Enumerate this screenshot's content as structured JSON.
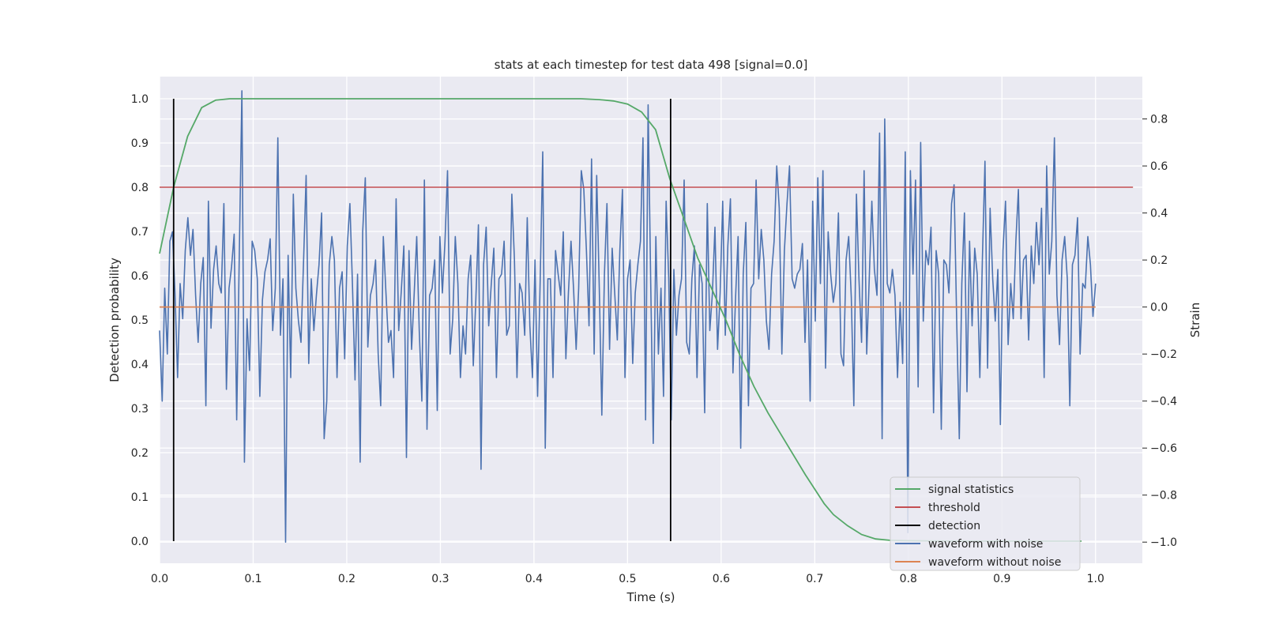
{
  "chart_data": {
    "type": "line",
    "title": "stats at each timestep for test data 498 [signal=0.0]",
    "xlabel": "Time (s)",
    "ylabel": "Detection probability",
    "y2label": "Strain",
    "xlim": [
      0.0,
      1.05
    ],
    "ylim": [
      -0.05,
      1.05
    ],
    "y2lim": [
      -1.09,
      0.98
    ],
    "xticks": [
      "0.0",
      "0.1",
      "0.2",
      "0.3",
      "0.4",
      "0.5",
      "0.6",
      "0.7",
      "0.8",
      "0.9",
      "1.0"
    ],
    "yticks": [
      "0.0",
      "0.1",
      "0.2",
      "0.3",
      "0.4",
      "0.5",
      "0.6",
      "0.7",
      "0.8",
      "0.9",
      "1.0"
    ],
    "y2ticks": [
      "−1.0",
      "−0.8",
      "−0.6",
      "−0.4",
      "−0.2",
      "0.0",
      "0.2",
      "0.4",
      "0.6",
      "0.8"
    ],
    "grid": true,
    "legend_position": "bottom-right",
    "colors": {
      "signal": "#55a868",
      "threshold": "#c44e52",
      "detection": "#000000",
      "noisy": "#4c72b0",
      "clean": "#dd8452",
      "axes_bg": "#eaeaf2",
      "grid": "#ffffff"
    },
    "series": [
      {
        "name": "signal statistics",
        "axis": "left",
        "x": [
          0.0,
          0.015,
          0.03,
          0.045,
          0.06,
          0.075,
          0.09,
          0.12,
          0.2,
          0.3,
          0.4,
          0.45,
          0.47,
          0.485,
          0.5,
          0.515,
          0.53,
          0.545,
          0.56,
          0.575,
          0.59,
          0.605,
          0.62,
          0.635,
          0.65,
          0.67,
          0.69,
          0.71,
          0.72,
          0.735,
          0.75,
          0.765,
          0.78,
          0.8,
          0.85,
          0.9,
          0.95,
          0.985
        ],
        "y": [
          0.65,
          0.8,
          0.915,
          0.98,
          0.997,
          1.0,
          1.0,
          1.0,
          1.0,
          1.0,
          1.0,
          1.0,
          0.998,
          0.995,
          0.988,
          0.97,
          0.93,
          0.82,
          0.73,
          0.64,
          0.57,
          0.5,
          0.42,
          0.35,
          0.29,
          0.22,
          0.15,
          0.085,
          0.06,
          0.035,
          0.015,
          0.005,
          0.002,
          0.001,
          0.0,
          0.0,
          0.0,
          0.0
        ]
      },
      {
        "name": "threshold",
        "axis": "left",
        "x": [
          0.0,
          1.04
        ],
        "y": [
          0.8,
          0.8
        ]
      },
      {
        "name": "detection",
        "axis": "left",
        "type": "vlines",
        "x": [
          0.015,
          0.546
        ],
        "ymin": 0.0,
        "ymax": 1.0
      },
      {
        "name": "waveform with noise",
        "axis": "right",
        "x_start": 0.0,
        "x_end": 1.0,
        "y": [
          -0.1,
          -0.4,
          0.08,
          -0.2,
          0.28,
          0.32,
          0.06,
          -0.3,
          0.1,
          -0.05,
          0.24,
          0.38,
          0.22,
          0.33,
          0.05,
          -0.15,
          0.1,
          0.21,
          -0.42,
          0.45,
          -0.09,
          0.16,
          0.26,
          0.1,
          0.06,
          0.44,
          -0.35,
          0.08,
          0.17,
          0.31,
          -0.48,
          0.22,
          0.92,
          -0.66,
          -0.05,
          -0.27,
          0.28,
          0.24,
          0.12,
          -0.38,
          0.03,
          0.15,
          0.2,
          0.29,
          -0.1,
          0.08,
          0.72,
          -0.12,
          0.12,
          -1.0,
          0.22,
          -0.3,
          0.48,
          0.08,
          -0.06,
          -0.15,
          0.2,
          0.56,
          -0.24,
          0.12,
          -0.1,
          0.05,
          0.18,
          0.4,
          -0.56,
          -0.4,
          0.18,
          0.3,
          0.2,
          -0.3,
          0.08,
          0.15,
          -0.22,
          0.26,
          0.44,
          0.1,
          -0.31,
          0.14,
          -0.66,
          0.32,
          0.55,
          -0.17,
          0.05,
          0.1,
          0.2,
          -0.2,
          -0.42,
          0.3,
          0.07,
          -0.15,
          -0.1,
          -0.3,
          0.46,
          -0.1,
          0.07,
          0.26,
          -0.64,
          0.24,
          -0.18,
          0.05,
          0.3,
          -0.1,
          -0.4,
          0.54,
          -0.52,
          0.05,
          0.08,
          0.2,
          -0.44,
          0.3,
          0.06,
          0.28,
          0.58,
          -0.2,
          -0.05,
          0.3,
          0.1,
          -0.3,
          -0.08,
          -0.2,
          0.12,
          0.22,
          -0.25,
          0.03,
          0.35,
          -0.69,
          0.18,
          0.34,
          -0.08,
          0.1,
          0.25,
          -0.3,
          0.12,
          0.14,
          0.28,
          -0.12,
          -0.08,
          0.48,
          0.2,
          -0.3,
          0.1,
          0.06,
          -0.12,
          0.38,
          -0.08,
          -0.3,
          0.2,
          -0.38,
          0.1,
          0.66,
          -0.6,
          0.12,
          0.12,
          -0.3,
          0.24,
          0.14,
          0.05,
          0.32,
          -0.22,
          0.06,
          0.28,
          0.08,
          -0.18,
          0.08,
          0.58,
          0.5,
          0.24,
          -0.08,
          0.63,
          -0.2,
          0.56,
          0.08,
          -0.46,
          0.14,
          0.44,
          -0.18,
          0.25,
          0.06,
          -0.14,
          0.24,
          0.5,
          -0.3,
          0.12,
          0.2,
          -0.24,
          0.06,
          0.18,
          0.28,
          0.72,
          -0.48,
          0.86,
          0.1,
          -0.58,
          0.3,
          -0.2,
          0.08,
          -0.38,
          0.45,
          0.12,
          -0.48,
          0.16,
          -0.12,
          0.05,
          0.12,
          0.54,
          -0.15,
          -0.2,
          0.12,
          0.26,
          -0.3,
          0.18,
          0.1,
          -0.45,
          0.44,
          -0.1,
          0.06,
          0.34,
          -0.18,
          0.06,
          0.45,
          -0.12,
          0.26,
          0.46,
          -0.28,
          0.04,
          0.3,
          -0.6,
          0.14,
          0.36,
          -0.42,
          0.08,
          0.1,
          0.54,
          0.12,
          0.33,
          0.2,
          -0.06,
          -0.18,
          0.14,
          0.28,
          0.6,
          0.42,
          -0.2,
          0.24,
          0.44,
          0.6,
          0.12,
          0.08,
          0.14,
          0.16,
          0.27,
          -0.15,
          0.2,
          -0.4,
          0.45,
          -0.06,
          0.55,
          0.1,
          0.58,
          -0.26,
          0.32,
          0.14,
          0.02,
          0.1,
          0.4,
          -0.2,
          -0.25,
          0.2,
          0.3,
          0.04,
          -0.42,
          0.48,
          0.12,
          -0.15,
          0.58,
          -0.2,
          0.12,
          0.45,
          0.16,
          0.05,
          0.74,
          -0.56,
          0.8,
          0.1,
          0.06,
          0.16,
          0.05,
          -0.3,
          0.02,
          -0.24,
          0.66,
          -0.96,
          0.58,
          0.14,
          0.54,
          -0.34,
          0.7,
          -0.06,
          0.24,
          0.18,
          0.34,
          -0.45,
          0.24,
          0.14,
          -0.52,
          0.2,
          0.18,
          0.06,
          0.44,
          0.52,
          -0.06,
          -0.56,
          0.1,
          0.4,
          -0.36,
          0.28,
          -0.08,
          0.25,
          0.14,
          -0.3,
          0.2,
          0.62,
          -0.26,
          0.42,
          0.12,
          -0.06,
          0.16,
          -0.5,
          0.24,
          0.45,
          -0.16,
          0.1,
          -0.05,
          0.28,
          0.5,
          -0.05,
          0.2,
          0.22,
          -0.14,
          0.26,
          0.1,
          0.36,
          0.18,
          0.42,
          -0.3,
          0.6,
          0.14,
          0.28,
          0.72,
          0.05,
          -0.16,
          0.2,
          0.3,
          0.12,
          -0.42,
          0.18,
          0.22,
          0.38,
          -0.2,
          0.1,
          0.08,
          0.3,
          0.18,
          -0.04,
          0.1
        ]
      },
      {
        "name": "waveform without noise",
        "axis": "right",
        "x": [
          0.0,
          1.0
        ],
        "y": [
          0.0,
          0.0
        ]
      }
    ]
  }
}
